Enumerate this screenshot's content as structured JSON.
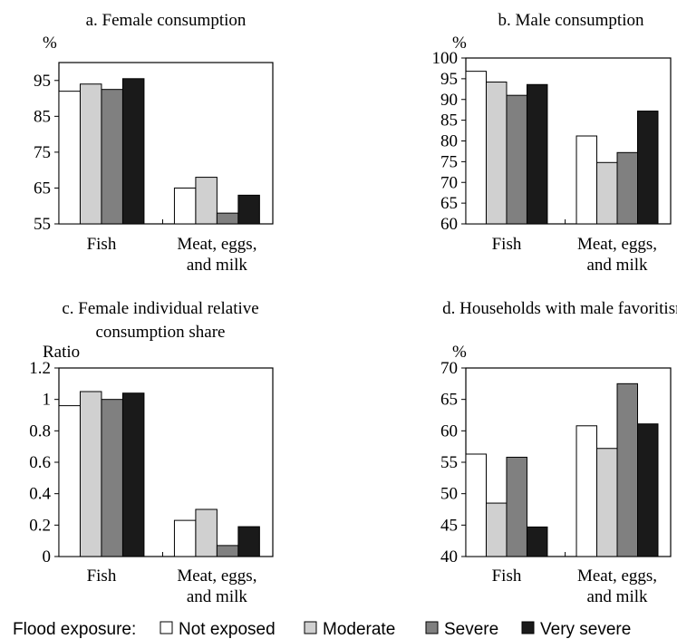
{
  "legend": {
    "label": "Flood exposure:",
    "items": [
      {
        "name": "Not exposed",
        "color": "#ffffff"
      },
      {
        "name": "Moderate",
        "color": "#d0d0d0"
      },
      {
        "name": "Severe",
        "color": "#808080"
      },
      {
        "name": "Very severe",
        "color": "#1a1a1a"
      }
    ]
  },
  "chart_data": [
    {
      "type": "bar",
      "title": "a. Female consumption",
      "ylabel": "%",
      "ylim": [
        55,
        100
      ],
      "yticks": [
        55,
        65,
        75,
        85,
        95
      ],
      "categories": [
        "Fish",
        "Meat, eggs, and milk"
      ],
      "series": [
        {
          "name": "Not exposed",
          "values": [
            92,
            65
          ]
        },
        {
          "name": "Moderate",
          "values": [
            94,
            68
          ]
        },
        {
          "name": "Severe",
          "values": [
            92.5,
            58
          ]
        },
        {
          "name": "Very severe",
          "values": [
            95.5,
            63
          ]
        }
      ]
    },
    {
      "type": "bar",
      "title": "b. Male consumption",
      "ylabel": "%",
      "ylim": [
        60,
        100
      ],
      "yticks": [
        60,
        65,
        70,
        75,
        80,
        85,
        90,
        95,
        100
      ],
      "categories": [
        "Fish",
        "Meat, eggs, and milk"
      ],
      "series": [
        {
          "name": "Not exposed",
          "values": [
            96.8,
            81.2
          ]
        },
        {
          "name": "Moderate",
          "values": [
            94.2,
            74.8
          ]
        },
        {
          "name": "Severe",
          "values": [
            91,
            77.2
          ]
        },
        {
          "name": "Very severe",
          "values": [
            93.6,
            87.2
          ]
        }
      ]
    },
    {
      "type": "bar",
      "title": "c. Female individual relative consumption share",
      "ylabel": "Ratio",
      "ylim": [
        0,
        1.2
      ],
      "yticks": [
        0,
        0.2,
        0.4,
        0.6,
        0.8,
        1,
        1.2
      ],
      "categories": [
        "Fish",
        "Meat, eggs, and milk"
      ],
      "series": [
        {
          "name": "Not exposed",
          "values": [
            0.96,
            0.23
          ]
        },
        {
          "name": "Moderate",
          "values": [
            1.05,
            0.3
          ]
        },
        {
          "name": "Severe",
          "values": [
            1.0,
            0.07
          ]
        },
        {
          "name": "Very severe",
          "values": [
            1.04,
            0.19
          ]
        }
      ]
    },
    {
      "type": "bar",
      "title": "d. Households with male favoritism",
      "ylabel": "%",
      "ylim": [
        40,
        70
      ],
      "yticks": [
        40,
        45,
        50,
        55,
        60,
        65,
        70
      ],
      "categories": [
        "Fish",
        "Meat, eggs, and milk"
      ],
      "series": [
        {
          "name": "Not exposed",
          "values": [
            56.3,
            60.8
          ]
        },
        {
          "name": "Moderate",
          "values": [
            48.5,
            57.2
          ]
        },
        {
          "name": "Severe",
          "values": [
            55.8,
            67.5
          ]
        },
        {
          "name": "Very severe",
          "values": [
            44.7,
            61.1
          ]
        }
      ]
    }
  ]
}
